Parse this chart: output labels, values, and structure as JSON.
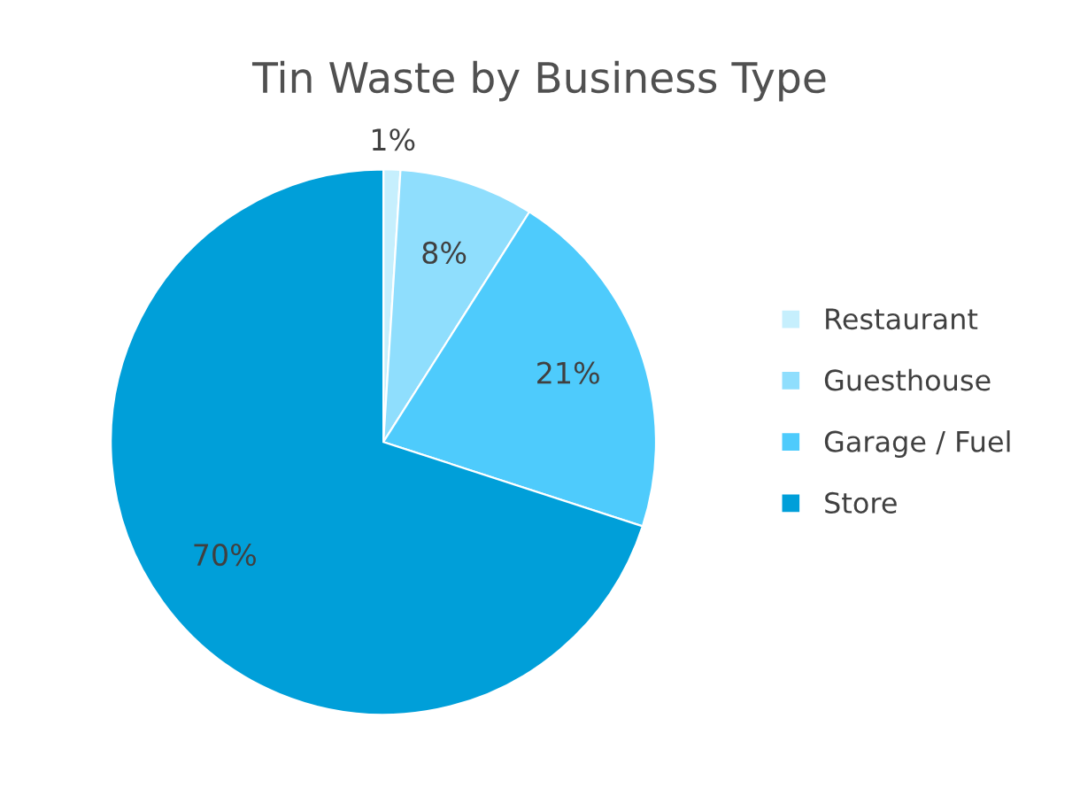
{
  "chart_data": {
    "type": "pie",
    "title": "Tin Waste by Business Type",
    "categories": [
      "Restaurant",
      "Guesthouse",
      "Garage / Fuel",
      "Store"
    ],
    "values": [
      1,
      8,
      21,
      70
    ],
    "value_labels": [
      "1%",
      "8%",
      "21%",
      "70%"
    ],
    "colors": [
      "#c6effd",
      "#8fdefd",
      "#4ecbfc",
      "#009fd9"
    ],
    "legend": "right"
  }
}
